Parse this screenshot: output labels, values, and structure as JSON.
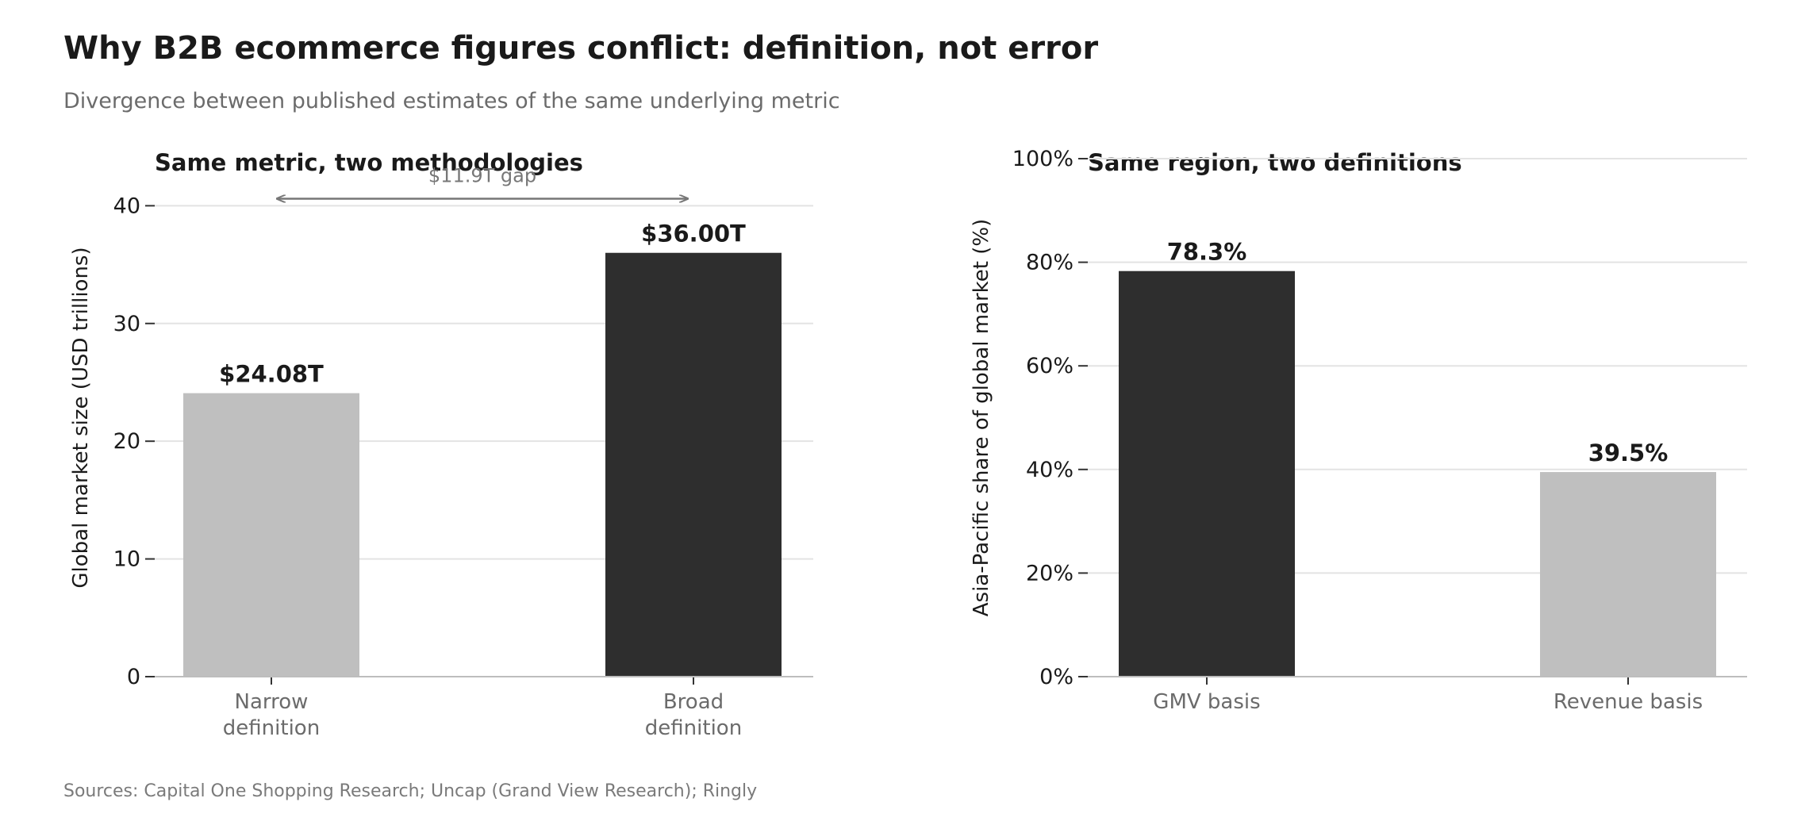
{
  "header": {
    "title": "Why B2B ecommerce figures conflict: definition, not error",
    "subtitle": "Divergence between published estimates of the same underlying metric"
  },
  "footer": {
    "sources": "Sources: Capital One Shopping Research; Uncap (Grand View Research); Ringly"
  },
  "colors": {
    "dark_bar": "#2e2e2e",
    "light_bar": "#bfbfbf",
    "grid": "#e3e3e3",
    "axis": "#bdbdbd",
    "annotation": "#777777"
  },
  "chart_data": [
    {
      "type": "bar",
      "title": "Same metric, two methodologies",
      "ylabel": "Global market size (USD trillions)",
      "xlabel": "",
      "categories": [
        "Narrow\ndefinition",
        "Broad\ndefinition"
      ],
      "values": [
        24.08,
        36.0
      ],
      "value_labels": [
        "$24.08T",
        "$36.00T"
      ],
      "bar_colors": [
        "#bfbfbf",
        "#2e2e2e"
      ],
      "ylim": [
        0,
        44
      ],
      "yticks": [
        0,
        10,
        20,
        30,
        40
      ],
      "ytick_labels": [
        "0",
        "10",
        "20",
        "30",
        "40"
      ],
      "grid": true,
      "annotation": {
        "text": "$11.9T gap",
        "y_value": 40.6
      }
    },
    {
      "type": "bar",
      "title": "Same region, two definitions",
      "ylabel": "Asia-Pacific share of global market (%)",
      "xlabel": "",
      "categories": [
        "GMV basis",
        "Revenue basis"
      ],
      "values": [
        78.3,
        39.5
      ],
      "value_labels": [
        "78.3%",
        "39.5%"
      ],
      "bar_colors": [
        "#2e2e2e",
        "#bfbfbf"
      ],
      "ylim": [
        0,
        100
      ],
      "yticks": [
        0,
        20,
        40,
        60,
        80,
        100
      ],
      "ytick_labels": [
        "0%",
        "20%",
        "40%",
        "60%",
        "80%",
        "100%"
      ],
      "grid": true
    }
  ]
}
